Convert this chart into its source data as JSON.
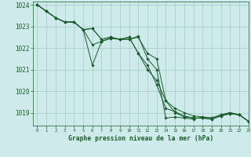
{
  "background_color": "#ceeaea",
  "grid_color": "#aacfcf",
  "line_color": "#1a5c2a",
  "marker_color": "#1a5c2a",
  "title": "Graphe pression niveau de la mer (hPa)",
  "xlim": [
    -0.5,
    23
  ],
  "ylim": [
    1018.4,
    1024.15
  ],
  "yticks": [
    1019,
    1020,
    1021,
    1022,
    1023,
    1024
  ],
  "xticks": [
    0,
    1,
    2,
    3,
    4,
    5,
    6,
    7,
    8,
    9,
    10,
    11,
    12,
    13,
    14,
    15,
    16,
    17,
    18,
    19,
    20,
    21,
    22,
    23
  ],
  "series": [
    [
      1024.0,
      1023.7,
      1023.4,
      1023.2,
      1023.2,
      1022.85,
      1021.2,
      1022.3,
      1022.45,
      1022.4,
      1022.4,
      1022.55,
      1021.5,
      1021.0,
      1018.75,
      1018.8,
      1018.75,
      1018.7,
      1018.8,
      1018.75,
      1018.9,
      1019.0,
      1018.9,
      1018.6
    ],
    [
      1024.0,
      1023.7,
      1023.4,
      1023.2,
      1023.2,
      1022.85,
      1022.9,
      1022.4,
      1022.5,
      1022.4,
      1022.5,
      1021.75,
      1021.0,
      1020.5,
      1019.55,
      1019.2,
      1019.0,
      1018.85,
      1018.8,
      1018.75,
      1018.9,
      1019.0,
      1018.9,
      1018.6
    ],
    [
      1024.0,
      1023.7,
      1023.4,
      1023.2,
      1023.2,
      1022.85,
      1022.9,
      1022.4,
      1022.5,
      1022.4,
      1022.5,
      1021.75,
      1021.2,
      1020.3,
      1019.2,
      1019.05,
      1018.85,
      1018.75,
      1018.75,
      1018.7,
      1018.85,
      1018.95,
      1018.9,
      1018.6
    ],
    [
      1024.0,
      1023.7,
      1023.4,
      1023.2,
      1023.2,
      1022.85,
      1022.15,
      1022.3,
      1022.45,
      1022.4,
      1022.4,
      1022.5,
      1021.75,
      1021.5,
      1019.55,
      1019.0,
      1018.8,
      1018.75,
      1018.75,
      1018.7,
      1018.85,
      1018.95,
      1018.9,
      1018.6
    ]
  ]
}
